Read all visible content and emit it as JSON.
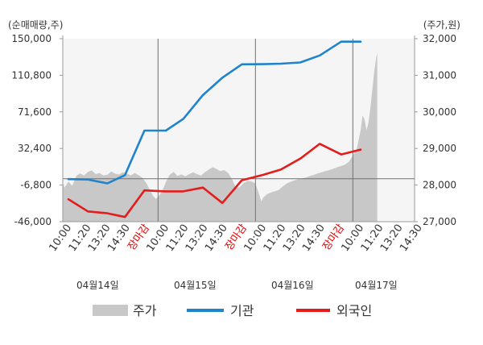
{
  "chart_data": {
    "type": "line",
    "left_axis": {
      "unit": "(순매매량,주)",
      "ticks": [
        "150,000",
        "110,800",
        "71,600",
        "32,400",
        "-6,800",
        "-46,000"
      ],
      "range": [
        -46000,
        150000
      ]
    },
    "right_axis": {
      "unit": "(주가,원)",
      "ticks": [
        "32,000",
        "31,000",
        "30,000",
        "29,000",
        "28,000",
        "27,000"
      ],
      "range": [
        27000,
        32000
      ]
    },
    "x_ticks": [
      {
        "label": "10:00",
        "x": 0,
        "closing": false
      },
      {
        "label": "11:20",
        "x": 1,
        "closing": false
      },
      {
        "label": "13:20",
        "x": 2,
        "closing": false
      },
      {
        "label": "14:30",
        "x": 3,
        "closing": false
      },
      {
        "label": "장마감",
        "x": 4,
        "closing": true
      },
      {
        "label": "10:00",
        "x": 5,
        "closing": false
      },
      {
        "label": "11:20",
        "x": 6,
        "closing": false
      },
      {
        "label": "13:20",
        "x": 7,
        "closing": false
      },
      {
        "label": "14:30",
        "x": 8,
        "closing": false
      },
      {
        "label": "장마감",
        "x": 9,
        "closing": true
      },
      {
        "label": "10:00",
        "x": 10,
        "closing": false
      },
      {
        "label": "11:20",
        "x": 11,
        "closing": false
      },
      {
        "label": "13:20",
        "x": 12,
        "closing": false
      },
      {
        "label": "14:30",
        "x": 13,
        "closing": false
      },
      {
        "label": "장마감",
        "x": 14,
        "closing": true
      },
      {
        "label": "10:00",
        "x": 15,
        "closing": false
      },
      {
        "label": "11:20",
        "x": 16,
        "closing": false
      },
      {
        "label": "13:20",
        "x": 17,
        "closing": false
      },
      {
        "label": "14:30",
        "x": 18,
        "closing": false
      }
    ],
    "date_labels": [
      {
        "label": "04월14일",
        "center": 1.5
      },
      {
        "label": "04월15일",
        "center": 6.5
      },
      {
        "label": "04월16일",
        "center": 11.5
      },
      {
        "label": "04월17일",
        "center": 15.8
      }
    ],
    "day_dividers": [
      4.6,
      9.6,
      14.6
    ],
    "series": [
      {
        "name": "주가",
        "kind": "area",
        "axis": "right",
        "color": "#c8c8c8",
        "points": [
          [
            -0.8,
            28170
          ],
          [
            -0.6,
            27990
          ],
          [
            -0.4,
            28080
          ],
          [
            -0.2,
            27930
          ],
          [
            0.0,
            28100
          ],
          [
            0.2,
            27980
          ],
          [
            0.4,
            28250
          ],
          [
            0.6,
            28320
          ],
          [
            0.8,
            28260
          ],
          [
            1.0,
            28360
          ],
          [
            1.2,
            28400
          ],
          [
            1.4,
            28300
          ],
          [
            1.6,
            28330
          ],
          [
            1.8,
            28260
          ],
          [
            2.0,
            28280
          ],
          [
            2.2,
            28370
          ],
          [
            2.4,
            28310
          ],
          [
            2.6,
            28290
          ],
          [
            2.8,
            28350
          ],
          [
            3.0,
            28320
          ],
          [
            3.2,
            28260
          ],
          [
            3.4,
            28330
          ],
          [
            3.6,
            28270
          ],
          [
            3.8,
            28200
          ],
          [
            4.0,
            28050
          ],
          [
            4.2,
            27850
          ],
          [
            4.35,
            27700
          ],
          [
            4.5,
            27620
          ],
          [
            4.6,
            27680
          ],
          [
            4.8,
            27820
          ],
          [
            5.0,
            28080
          ],
          [
            5.2,
            28280
          ],
          [
            5.4,
            28360
          ],
          [
            5.6,
            28250
          ],
          [
            5.8,
            28290
          ],
          [
            6.0,
            28240
          ],
          [
            6.2,
            28300
          ],
          [
            6.4,
            28350
          ],
          [
            6.6,
            28300
          ],
          [
            6.8,
            28260
          ],
          [
            7.0,
            28350
          ],
          [
            7.2,
            28420
          ],
          [
            7.4,
            28490
          ],
          [
            7.6,
            28440
          ],
          [
            7.8,
            28380
          ],
          [
            8.0,
            28410
          ],
          [
            8.2,
            28330
          ],
          [
            8.4,
            28160
          ],
          [
            8.6,
            27920
          ],
          [
            8.8,
            27950
          ],
          [
            9.0,
            28060
          ],
          [
            9.2,
            28120
          ],
          [
            9.4,
            28100
          ],
          [
            9.6,
            28040
          ],
          [
            9.8,
            27730
          ],
          [
            9.9,
            27550
          ],
          [
            10.0,
            27660
          ],
          [
            10.2,
            27750
          ],
          [
            10.4,
            27800
          ],
          [
            10.6,
            27830
          ],
          [
            10.8,
            27870
          ],
          [
            11.0,
            27960
          ],
          [
            11.2,
            28040
          ],
          [
            11.4,
            28090
          ],
          [
            11.6,
            28130
          ],
          [
            11.8,
            28160
          ],
          [
            12.0,
            28180
          ],
          [
            12.2,
            28210
          ],
          [
            12.4,
            28250
          ],
          [
            12.6,
            28280
          ],
          [
            12.8,
            28320
          ],
          [
            13.0,
            28350
          ],
          [
            13.2,
            28380
          ],
          [
            13.4,
            28410
          ],
          [
            13.6,
            28450
          ],
          [
            13.8,
            28490
          ],
          [
            14.0,
            28520
          ],
          [
            14.2,
            28560
          ],
          [
            14.4,
            28640
          ],
          [
            14.6,
            28800
          ],
          [
            14.8,
            28990
          ],
          [
            15.0,
            29500
          ],
          [
            15.1,
            29900
          ],
          [
            15.2,
            29800
          ],
          [
            15.3,
            29500
          ],
          [
            15.4,
            29700
          ],
          [
            15.5,
            30100
          ],
          [
            15.6,
            30600
          ],
          [
            15.7,
            31100
          ],
          [
            15.8,
            31500
          ],
          [
            15.85,
            31600
          ]
        ]
      },
      {
        "name": "기관",
        "kind": "line",
        "axis": "left",
        "color": "#1f84cc",
        "points": [
          [
            0.0,
            -400
          ],
          [
            1.0,
            -800
          ],
          [
            2.0,
            -5000
          ],
          [
            2.9,
            3800
          ],
          [
            3.9,
            51600
          ],
          [
            5.0,
            51600
          ],
          [
            5.9,
            64200
          ],
          [
            6.9,
            89600
          ],
          [
            7.9,
            108200
          ],
          [
            8.9,
            122500
          ],
          [
            10.0,
            122700
          ],
          [
            10.9,
            123200
          ],
          [
            11.9,
            124500
          ],
          [
            12.9,
            132000
          ],
          [
            14.0,
            146800
          ],
          [
            15.0,
            146800
          ]
        ]
      },
      {
        "name": "외국인",
        "kind": "line",
        "axis": "left",
        "color": "#e31c1c",
        "points": [
          [
            0.0,
            -22000
          ],
          [
            1.0,
            -35000
          ],
          [
            2.0,
            -37000
          ],
          [
            2.9,
            -41000
          ],
          [
            3.9,
            -12500
          ],
          [
            5.0,
            -13500
          ],
          [
            5.9,
            -13500
          ],
          [
            6.9,
            -9500
          ],
          [
            7.9,
            -26000
          ],
          [
            8.9,
            -1600
          ],
          [
            10.0,
            4200
          ],
          [
            10.9,
            9800
          ],
          [
            11.9,
            21500
          ],
          [
            12.9,
            37400
          ],
          [
            14.0,
            26000
          ],
          [
            15.0,
            31200
          ]
        ]
      }
    ],
    "legend": {
      "position": "bottom",
      "entries": [
        "주가",
        "기관",
        "외국인"
      ]
    },
    "grid": false
  }
}
